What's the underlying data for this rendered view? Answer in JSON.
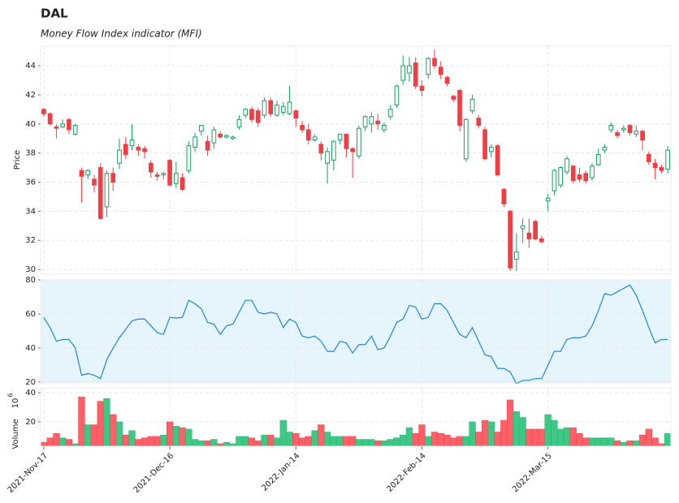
{
  "chart_data": [
    {
      "type": "candlestick",
      "title": "DAL",
      "subtitle": "Money Flow Index indicator (MFI)",
      "ylabel": "Price",
      "up_color": "#1aa260",
      "down_color": "#f23d45",
      "grid": true,
      "categories": [
        "2021-Nov-17",
        null,
        null,
        null,
        null,
        null,
        null,
        null,
        null,
        null,
        null,
        null,
        null,
        null,
        null,
        null,
        null,
        null,
        null,
        null,
        "2021-Dec-16",
        null,
        null,
        null,
        null,
        null,
        null,
        null,
        null,
        null,
        null,
        null,
        null,
        null,
        null,
        null,
        null,
        null,
        null,
        null,
        "2022-Jan-14",
        null,
        null,
        null,
        null,
        null,
        null,
        null,
        null,
        null,
        null,
        null,
        null,
        null,
        null,
        null,
        null,
        null,
        null,
        null,
        "2022-Feb-14",
        null,
        null,
        null,
        null,
        null,
        null,
        null,
        null,
        null,
        null,
        null,
        null,
        null,
        null,
        null,
        null,
        null,
        null,
        null,
        "2022-Mar-15",
        null,
        null,
        null,
        null,
        null,
        null,
        null,
        null,
        null,
        null,
        null,
        null,
        null,
        null,
        null,
        null,
        null,
        null,
        null
      ],
      "open": [
        41.0,
        40.7,
        39.8,
        39.8,
        40.3,
        39.3,
        36.8,
        36.5,
        36.2,
        37.0,
        34.3,
        36.6,
        37.3,
        38.6,
        38.5,
        38.4,
        38.3,
        37.3,
        36.5,
        36.5,
        37.5,
        35.9,
        36.3,
        36.8,
        38.4,
        39.5,
        38.8,
        38.7,
        39.3,
        39.1,
        39.0,
        39.8,
        40.6,
        41.0,
        40.9,
        40.6,
        41.6,
        40.6,
        40.8,
        40.7,
        40.9,
        39.9,
        39.6,
        38.9,
        38.6,
        37.3,
        37.5,
        38.9,
        39.3,
        38.3,
        37.8,
        39.8,
        40.0,
        40.2,
        39.6,
        40.5,
        41.3,
        43.0,
        43.5,
        44.2,
        42.6,
        43.4,
        44.5,
        43.9,
        43.2,
        41.9,
        42.3,
        37.6,
        40.9,
        40.4,
        39.6,
        38.1,
        38.5,
        35.5,
        34.0,
        30.7,
        32.8,
        32.5,
        33.3,
        32.1,
        34.7,
        35.4,
        35.8,
        36.7,
        37.1,
        36.5,
        36.6,
        36.3,
        37.2,
        38.2,
        39.6,
        39.4,
        39.6,
        39.9,
        39.3,
        39.5,
        37.9,
        37.3,
        37.0,
        36.9
      ],
      "high": [
        41.1,
        40.8,
        40.0,
        40.3,
        40.4,
        40.0,
        37.0,
        36.9,
        36.5,
        37.3,
        36.8,
        37.0,
        39.0,
        39.1,
        40.0,
        38.6,
        38.5,
        37.5,
        36.7,
        36.7,
        37.6,
        37.4,
        36.6,
        38.8,
        39.4,
        39.9,
        39.2,
        39.8,
        39.5,
        39.3,
        39.2,
        40.6,
        41.1,
        41.2,
        41.1,
        41.8,
        41.8,
        41.6,
        41.5,
        42.6,
        41.0,
        40.2,
        40.0,
        39.3,
        38.8,
        38.4,
        38.9,
        39.3,
        39.3,
        38.4,
        39.9,
        40.6,
        40.8,
        40.7,
        40.1,
        41.3,
        42.7,
        44.7,
        44.6,
        44.6,
        43.0,
        44.6,
        45.1,
        44.3,
        43.3,
        42.0,
        42.4,
        40.4,
        42.0,
        40.6,
        39.8,
        38.6,
        38.6,
        35.6,
        34.1,
        32.5,
        33.5,
        33.5,
        33.4,
        32.3,
        35.2,
        36.9,
        37.1,
        37.8,
        37.2,
        37.0,
        36.8,
        37.3,
        38.3,
        38.6,
        40.1,
        39.6,
        39.9,
        40.0,
        39.9,
        39.6,
        38.1,
        37.6,
        37.2,
        38.5
      ],
      "low": [
        40.5,
        39.9,
        39.0,
        39.7,
        39.3,
        39.2,
        34.6,
        36.2,
        35.3,
        33.4,
        33.6,
        35.4,
        36.9,
        37.6,
        38.2,
        37.8,
        37.6,
        36.3,
        36.1,
        36.2,
        35.7,
        35.6,
        35.4,
        36.6,
        38.1,
        39.2,
        37.8,
        38.3,
        39.0,
        39.0,
        38.9,
        39.6,
        40.4,
        40.1,
        39.8,
        40.4,
        40.5,
        40.5,
        40.6,
        40.6,
        39.8,
        39.4,
        38.6,
        38.8,
        37.5,
        35.9,
        36.8,
        38.6,
        37.7,
        36.3,
        37.6,
        39.5,
        39.4,
        39.6,
        39.4,
        40.3,
        41.1,
        42.7,
        42.9,
        42.4,
        41.9,
        43.1,
        43.8,
        43.1,
        42.6,
        41.5,
        39.5,
        37.4,
        40.7,
        39.7,
        37.5,
        37.7,
        36.4,
        34.3,
        29.9,
        29.9,
        31.8,
        31.5,
        32.0,
        31.8,
        34.0,
        35.1,
        35.6,
        36.5,
        35.9,
        36.0,
        35.9,
        36.1,
        37.1,
        38.0,
        39.4,
        39.0,
        39.4,
        39.2,
        39.1,
        38.2,
        37.2,
        36.2,
        36.6,
        36.6
      ],
      "close": [
        40.7,
        40.0,
        39.7,
        40.0,
        39.6,
        39.9,
        36.4,
        36.8,
        35.8,
        33.5,
        36.6,
        36.0,
        38.2,
        37.9,
        38.9,
        38.2,
        38.1,
        36.7,
        36.4,
        36.6,
        35.8,
        36.6,
        35.5,
        38.5,
        39.1,
        39.9,
        38.2,
        39.6,
        39.1,
        39.2,
        39.1,
        40.3,
        41.0,
        40.3,
        40.1,
        41.6,
        40.7,
        41.3,
        41.2,
        41.5,
        40.4,
        39.6,
        38.9,
        39.1,
        38.0,
        38.1,
        38.8,
        39.3,
        38.3,
        38.1,
        39.7,
        40.5,
        40.5,
        40.0,
        39.9,
        41.0,
        42.6,
        44.0,
        44.0,
        42.6,
        42.3,
        44.5,
        44.0,
        43.4,
        42.8,
        41.7,
        39.9,
        40.3,
        41.7,
        39.9,
        37.6,
        38.4,
        36.5,
        34.5,
        30.1,
        31.2,
        33.0,
        32.1,
        32.1,
        31.9,
        34.9,
        36.8,
        37.0,
        37.6,
        36.1,
        36.2,
        36.1,
        37.1,
        37.9,
        38.4,
        39.9,
        39.2,
        39.7,
        39.4,
        39.5,
        38.9,
        37.4,
        37.0,
        36.8,
        38.2
      ],
      "ylim": [
        29.67,
        45.34
      ],
      "yticks": [
        30,
        32,
        34,
        36,
        38,
        40,
        42,
        44
      ]
    },
    {
      "type": "line",
      "color": "#1e88e5",
      "band": [
        20,
        80
      ],
      "band_color": "#e6f4fb",
      "values": [
        58,
        52,
        44,
        45,
        45,
        40,
        24,
        25,
        24,
        22,
        33,
        40,
        46,
        51,
        56,
        57,
        57,
        53,
        49,
        48,
        58,
        57.6,
        58,
        68,
        66,
        63,
        55,
        54,
        48,
        53,
        54,
        61,
        68,
        68,
        61,
        60,
        61,
        60,
        52,
        57,
        55,
        47,
        46,
        47,
        44,
        38,
        38,
        44,
        43,
        37,
        42,
        42,
        47,
        39,
        40,
        47,
        55,
        57,
        65,
        64,
        57,
        58,
        66,
        66,
        62,
        55,
        48,
        46,
        52,
        44,
        36,
        35,
        28,
        28,
        26,
        19,
        21,
        21,
        22,
        22,
        30,
        38,
        38,
        45,
        46,
        46,
        47,
        53,
        62,
        72,
        71,
        73,
        75,
        77,
        71,
        62,
        52,
        43,
        45,
        45
      ],
      "ylim": [
        19,
        80
      ],
      "yticks": [
        20,
        40,
        60,
        80
      ]
    },
    {
      "type": "bar",
      "ylabel": "Volume",
      "scale_base": "10",
      "scale_exponent": "6",
      "values": [
        6,
        9,
        12,
        9,
        8,
        5,
        37,
        18,
        18,
        34,
        36,
        25,
        20,
        11,
        14,
        8,
        9,
        10,
        10,
        11,
        20,
        17,
        16,
        15,
        8,
        7,
        7,
        8,
        5,
        6,
        5,
        10,
        10,
        9,
        7,
        11,
        11,
        9,
        21,
        13,
        12,
        9,
        10,
        14,
        18,
        13,
        10,
        10,
        10,
        10,
        8,
        8,
        8,
        7,
        7,
        8,
        9,
        11,
        16,
        12,
        18,
        10,
        13,
        12,
        11,
        9,
        10,
        10,
        20,
        13,
        21,
        20,
        13,
        21,
        35,
        27,
        23,
        15,
        15,
        15,
        25,
        21,
        15,
        16,
        16,
        12,
        9,
        9,
        9,
        9,
        9,
        7,
        6,
        7,
        7,
        11,
        15,
        9,
        5,
        12
      ],
      "up_color": "#3dc985",
      "down_color": "#ff6068",
      "ylim": [
        3.3,
        43.3
      ],
      "yticks": [
        20,
        40
      ]
    }
  ]
}
